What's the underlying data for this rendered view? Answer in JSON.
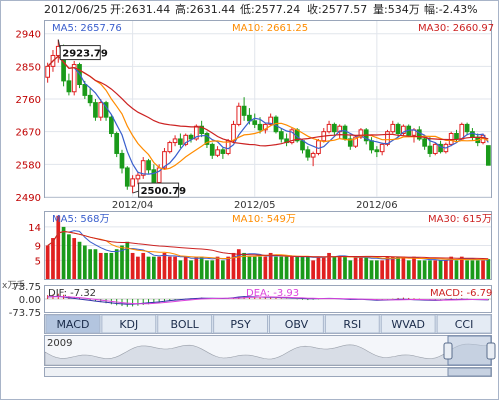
{
  "header": {
    "date": "2012/06/25",
    "open": "开:2631.44",
    "high": "高:2631.44",
    "low": "低:2577.24",
    "close": "收:2577.57",
    "volume": "量:534万",
    "change": "幅:-2.43%"
  },
  "colors": {
    "up": "#e02020",
    "down": "#1a9a1a",
    "ma5": "#3a5fcd",
    "ma10": "#ff8c00",
    "ma30": "#cc2222",
    "dif": "#3333aa",
    "dea": "#dd44dd"
  },
  "price_panel": {
    "ma5_label": "MA5: 2657.76",
    "ma10_label": "MA10: 2661.25",
    "ma30_label": "MA30: 2660.97",
    "high_annotation": "2923.79",
    "low_annotation": "2500.79"
  },
  "volume_panel": {
    "ma5_label": "MA5: 568万",
    "ma10_label": "MA10: 549万",
    "ma30_label": "MA30: 615万",
    "unit_label": "x万手"
  },
  "macd_panel": {
    "dif_label": "DIF: -7.32",
    "dea_label": "DEA: -3.93",
    "macd_label": "MACD: -6.79"
  },
  "tabs": [
    {
      "label": "MACD",
      "active": true
    },
    {
      "label": "KDJ",
      "active": false
    },
    {
      "label": "BOLL",
      "active": false
    },
    {
      "label": "PSY",
      "active": false
    },
    {
      "label": "OBV",
      "active": false
    },
    {
      "label": "RSI",
      "active": false
    },
    {
      "label": "WVAD",
      "active": false
    },
    {
      "label": "CCI",
      "active": false
    }
  ],
  "navigator": {
    "year_label": "2009"
  },
  "chart_data": [
    {
      "type": "candlestick",
      "ylim": [
        2490,
        2975
      ],
      "yticks": [
        2940,
        2850,
        2760,
        2670,
        2580,
        2490
      ],
      "xticks": [
        {
          "index": 16,
          "label": "2012/04"
        },
        {
          "index": 39,
          "label": "2012/05"
        },
        {
          "index": 62,
          "label": "2012/06"
        }
      ],
      "candles": [
        {
          "o": 2820,
          "h": 2860,
          "l": 2805,
          "c": 2850
        },
        {
          "o": 2850,
          "h": 2895,
          "l": 2835,
          "c": 2880
        },
        {
          "o": 2880,
          "h": 2923.79,
          "l": 2860,
          "c": 2905
        },
        {
          "o": 2905,
          "h": 2910,
          "l": 2795,
          "c": 2810
        },
        {
          "o": 2810,
          "h": 2830,
          "l": 2770,
          "c": 2780
        },
        {
          "o": 2780,
          "h": 2865,
          "l": 2770,
          "c": 2855
        },
        {
          "o": 2855,
          "h": 2860,
          "l": 2790,
          "c": 2800
        },
        {
          "o": 2800,
          "h": 2810,
          "l": 2760,
          "c": 2770
        },
        {
          "o": 2770,
          "h": 2790,
          "l": 2740,
          "c": 2750
        },
        {
          "o": 2750,
          "h": 2760,
          "l": 2700,
          "c": 2710
        },
        {
          "o": 2710,
          "h": 2760,
          "l": 2700,
          "c": 2750
        },
        {
          "o": 2750,
          "h": 2755,
          "l": 2700,
          "c": 2710
        },
        {
          "o": 2710,
          "h": 2715,
          "l": 2655,
          "c": 2665
        },
        {
          "o": 2665,
          "h": 2670,
          "l": 2600,
          "c": 2610
        },
        {
          "o": 2610,
          "h": 2620,
          "l": 2555,
          "c": 2570
        },
        {
          "o": 2570,
          "h": 2575,
          "l": 2510,
          "c": 2520
        },
        {
          "o": 2520,
          "h": 2550,
          "l": 2500.79,
          "c": 2540
        },
        {
          "o": 2540,
          "h": 2560,
          "l": 2525,
          "c": 2550
        },
        {
          "o": 2550,
          "h": 2600,
          "l": 2540,
          "c": 2590
        },
        {
          "o": 2590,
          "h": 2595,
          "l": 2555,
          "c": 2565
        },
        {
          "o": 2565,
          "h": 2580,
          "l": 2520,
          "c": 2530
        },
        {
          "o": 2530,
          "h": 2580,
          "l": 2525,
          "c": 2570
        },
        {
          "o": 2570,
          "h": 2625,
          "l": 2565,
          "c": 2615
        },
        {
          "o": 2615,
          "h": 2645,
          "l": 2610,
          "c": 2640
        },
        {
          "o": 2640,
          "h": 2660,
          "l": 2630,
          "c": 2650
        },
        {
          "o": 2650,
          "h": 2665,
          "l": 2625,
          "c": 2635
        },
        {
          "o": 2635,
          "h": 2665,
          "l": 2630,
          "c": 2660
        },
        {
          "o": 2660,
          "h": 2665,
          "l": 2640,
          "c": 2650
        },
        {
          "o": 2650,
          "h": 2690,
          "l": 2645,
          "c": 2685
        },
        {
          "o": 2685,
          "h": 2700,
          "l": 2655,
          "c": 2665
        },
        {
          "o": 2665,
          "h": 2670,
          "l": 2625,
          "c": 2635
        },
        {
          "o": 2635,
          "h": 2640,
          "l": 2595,
          "c": 2605
        },
        {
          "o": 2605,
          "h": 2630,
          "l": 2600,
          "c": 2620
        },
        {
          "o": 2620,
          "h": 2625,
          "l": 2595,
          "c": 2610
        },
        {
          "o": 2610,
          "h": 2650,
          "l": 2605,
          "c": 2645
        },
        {
          "o": 2645,
          "h": 2700,
          "l": 2640,
          "c": 2690
        },
        {
          "o": 2690,
          "h": 2750,
          "l": 2685,
          "c": 2740
        },
        {
          "o": 2740,
          "h": 2765,
          "l": 2700,
          "c": 2715
        },
        {
          "o": 2715,
          "h": 2735,
          "l": 2690,
          "c": 2700
        },
        {
          "o": 2700,
          "h": 2720,
          "l": 2680,
          "c": 2690
        },
        {
          "o": 2690,
          "h": 2710,
          "l": 2665,
          "c": 2675
        },
        {
          "o": 2675,
          "h": 2695,
          "l": 2665,
          "c": 2690
        },
        {
          "o": 2690,
          "h": 2720,
          "l": 2685,
          "c": 2710
        },
        {
          "o": 2710,
          "h": 2715,
          "l": 2665,
          "c": 2670
        },
        {
          "o": 2670,
          "h": 2680,
          "l": 2640,
          "c": 2650
        },
        {
          "o": 2650,
          "h": 2665,
          "l": 2630,
          "c": 2640
        },
        {
          "o": 2640,
          "h": 2680,
          "l": 2635,
          "c": 2675
        },
        {
          "o": 2675,
          "h": 2680,
          "l": 2640,
          "c": 2645
        },
        {
          "o": 2645,
          "h": 2650,
          "l": 2610,
          "c": 2620
        },
        {
          "o": 2620,
          "h": 2630,
          "l": 2590,
          "c": 2600
        },
        {
          "o": 2600,
          "h": 2615,
          "l": 2575,
          "c": 2610
        },
        {
          "o": 2610,
          "h": 2650,
          "l": 2605,
          "c": 2645
        },
        {
          "o": 2645,
          "h": 2680,
          "l": 2640,
          "c": 2670
        },
        {
          "o": 2670,
          "h": 2700,
          "l": 2665,
          "c": 2690
        },
        {
          "o": 2690,
          "h": 2695,
          "l": 2660,
          "c": 2670
        },
        {
          "o": 2670,
          "h": 2690,
          "l": 2650,
          "c": 2685
        },
        {
          "o": 2685,
          "h": 2690,
          "l": 2645,
          "c": 2650
        },
        {
          "o": 2650,
          "h": 2660,
          "l": 2620,
          "c": 2630
        },
        {
          "o": 2630,
          "h": 2660,
          "l": 2625,
          "c": 2655
        },
        {
          "o": 2655,
          "h": 2680,
          "l": 2650,
          "c": 2675
        },
        {
          "o": 2675,
          "h": 2680,
          "l": 2635,
          "c": 2645
        },
        {
          "o": 2645,
          "h": 2655,
          "l": 2610,
          "c": 2620
        },
        {
          "o": 2620,
          "h": 2630,
          "l": 2600,
          "c": 2615
        },
        {
          "o": 2615,
          "h": 2640,
          "l": 2605,
          "c": 2635
        },
        {
          "o": 2635,
          "h": 2675,
          "l": 2630,
          "c": 2670
        },
        {
          "o": 2670,
          "h": 2700,
          "l": 2665,
          "c": 2690
        },
        {
          "o": 2690,
          "h": 2695,
          "l": 2655,
          "c": 2665
        },
        {
          "o": 2665,
          "h": 2690,
          "l": 2660,
          "c": 2685
        },
        {
          "o": 2685,
          "h": 2690,
          "l": 2655,
          "c": 2660
        },
        {
          "o": 2660,
          "h": 2680,
          "l": 2640,
          "c": 2675
        },
        {
          "o": 2675,
          "h": 2685,
          "l": 2645,
          "c": 2650
        },
        {
          "o": 2650,
          "h": 2660,
          "l": 2620,
          "c": 2630
        },
        {
          "o": 2630,
          "h": 2655,
          "l": 2600,
          "c": 2610
        },
        {
          "o": 2610,
          "h": 2640,
          "l": 2605,
          "c": 2635
        },
        {
          "o": 2635,
          "h": 2645,
          "l": 2610,
          "c": 2615
        },
        {
          "o": 2615,
          "h": 2640,
          "l": 2610,
          "c": 2635
        },
        {
          "o": 2635,
          "h": 2670,
          "l": 2630,
          "c": 2665
        },
        {
          "o": 2665,
          "h": 2675,
          "l": 2640,
          "c": 2650
        },
        {
          "o": 2650,
          "h": 2695,
          "l": 2645,
          "c": 2690
        },
        {
          "o": 2690,
          "h": 2695,
          "l": 2660,
          "c": 2670
        },
        {
          "o": 2670,
          "h": 2680,
          "l": 2645,
          "c": 2655
        },
        {
          "o": 2655,
          "h": 2665,
          "l": 2630,
          "c": 2640
        },
        {
          "o": 2640,
          "h": 2665,
          "l": 2635,
          "c": 2660
        },
        {
          "o": 2631.44,
          "h": 2631.44,
          "l": 2577.24,
          "c": 2577.57
        }
      ]
    },
    {
      "type": "bar",
      "name": "volume",
      "ylim": [
        0,
        18
      ],
      "yticks": [
        14,
        9,
        5
      ],
      "values": [
        9,
        11,
        17,
        14,
        12,
        11,
        10,
        9,
        8,
        8,
        7,
        7,
        7,
        8,
        9,
        10,
        7,
        6,
        7,
        6,
        6,
        6,
        7,
        6,
        6,
        5,
        6,
        5,
        6,
        6,
        5,
        5,
        6,
        5,
        6,
        7,
        8,
        7,
        6,
        6,
        6,
        6,
        7,
        6,
        6,
        6,
        6,
        6,
        6,
        6,
        5,
        6,
        6,
        7,
        6,
        6,
        6,
        5,
        6,
        6,
        6,
        5,
        5,
        5,
        6,
        6,
        6,
        6,
        5,
        6,
        5,
        5,
        5,
        5,
        5,
        5,
        6,
        5,
        6,
        5,
        5,
        5,
        5,
        5.34
      ]
    },
    {
      "type": "bar",
      "name": "macd",
      "ylim": [
        -73.75,
        73.75
      ],
      "yticks": [
        73.75,
        0.0,
        -73.75
      ],
      "values": [
        22,
        26,
        30,
        24,
        16,
        12,
        6,
        0,
        -6,
        -12,
        -18,
        -24,
        -30,
        -36,
        -40,
        -44,
        -42,
        -38,
        -34,
        -30,
        -26,
        -22,
        -16,
        -10,
        -6,
        -2,
        2,
        4,
        6,
        8,
        6,
        4,
        2,
        0,
        2,
        6,
        12,
        16,
        14,
        12,
        10,
        8,
        8,
        6,
        4,
        2,
        0,
        -2,
        -4,
        -6,
        -4,
        -2,
        0,
        2,
        2,
        0,
        -2,
        -4,
        -2,
        0,
        -2,
        -4,
        -6,
        -4,
        -2,
        2,
        6,
        8,
        6,
        4,
        2,
        0,
        -2,
        -4,
        -2,
        2,
        4,
        2,
        4,
        2,
        0,
        -2,
        -4,
        -6.79
      ]
    }
  ]
}
